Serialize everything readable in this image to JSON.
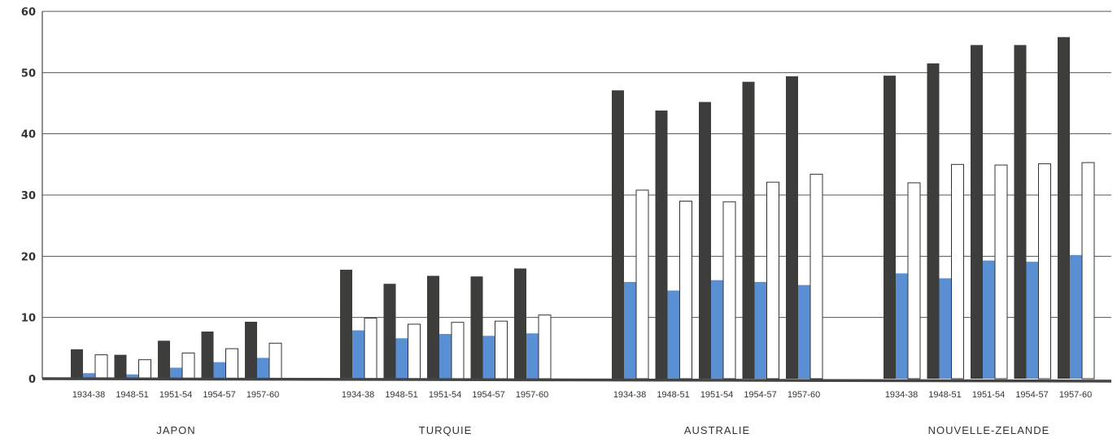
{
  "chart_data": {
    "type": "bar",
    "title": "",
    "xlabel": "",
    "ylabel": "",
    "ylim": [
      0,
      60
    ],
    "yticks": [
      0,
      10,
      20,
      30,
      40,
      50,
      60
    ],
    "grid": true,
    "legend": "none",
    "periods": [
      "1934-38",
      "1948-51",
      "1951-54",
      "1954-57",
      "1957-60"
    ],
    "colors": {
      "series_dark": "#3d3d3b",
      "series_blue": "#5b8fd4",
      "series_white": "#ffffff",
      "grid": "#555555",
      "axis": "#444444"
    },
    "groups": [
      {
        "country": "JAPON",
        "series": [
          {
            "values": [
              4.8,
              3.9,
              6.2,
              7.7,
              9.3
            ]
          },
          {
            "values": [
              0.9,
              0.7,
              1.8,
              2.7,
              3.4
            ]
          },
          {
            "values": [
              3.9,
              3.1,
              4.2,
              4.9,
              5.8
            ]
          }
        ]
      },
      {
        "country": "TURQUIE",
        "series": [
          {
            "values": [
              17.8,
              15.5,
              16.8,
              16.7,
              18.0
            ]
          },
          {
            "values": [
              7.9,
              6.6,
              7.3,
              7.0,
              7.4
            ]
          },
          {
            "values": [
              9.9,
              8.9,
              9.2,
              9.4,
              10.4
            ]
          }
        ]
      },
      {
        "country": "AUSTRALIE",
        "series": [
          {
            "values": [
              47.1,
              43.8,
              45.2,
              48.5,
              49.4
            ]
          },
          {
            "values": [
              15.8,
              14.4,
              16.1,
              15.8,
              15.3
            ]
          },
          {
            "values": [
              30.8,
              29.0,
              28.9,
              32.1,
              33.4
            ]
          }
        ]
      },
      {
        "country": "NOUVELLE-ZELANDE",
        "series": [
          {
            "values": [
              49.5,
              51.5,
              54.5,
              54.5,
              55.8
            ]
          },
          {
            "values": [
              17.2,
              16.4,
              19.3,
              19.1,
              20.2
            ]
          },
          {
            "values": [
              32.0,
              35.0,
              34.9,
              35.1,
              35.3
            ]
          }
        ]
      }
    ]
  }
}
